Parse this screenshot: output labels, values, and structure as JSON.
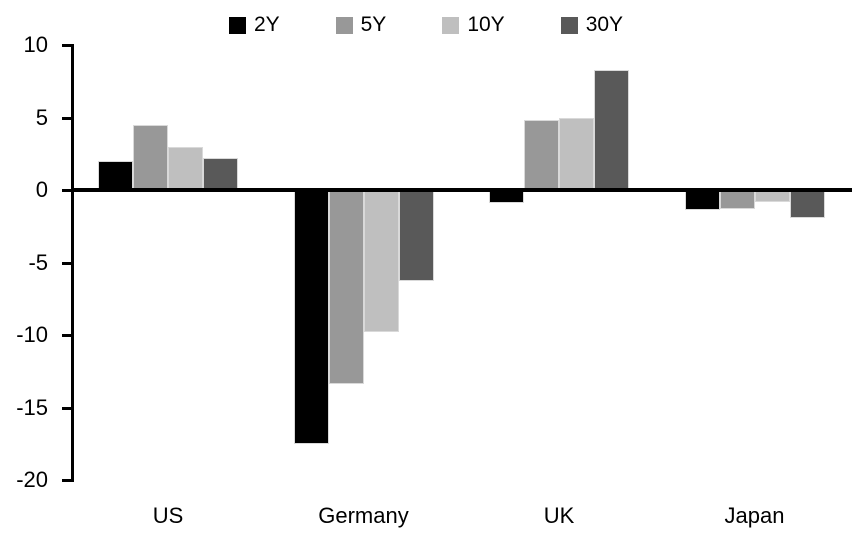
{
  "chart_data": {
    "type": "bar",
    "title": "",
    "categories": [
      "US",
      "Germany",
      "UK",
      "Japan"
    ],
    "series": [
      {
        "name": "2Y",
        "color": "#000000",
        "values": [
          2.0,
          -17.5,
          -0.9,
          -1.4
        ]
      },
      {
        "name": "5Y",
        "color": "#989898",
        "values": [
          4.5,
          -13.4,
          4.8,
          -1.3
        ]
      },
      {
        "name": "10Y",
        "color": "#bfbfbf",
        "values": [
          3.0,
          -9.8,
          5.0,
          -0.8
        ]
      },
      {
        "name": "30Y",
        "color": "#595959",
        "values": [
          2.2,
          -6.3,
          8.3,
          -1.9
        ]
      }
    ],
    "ylim": [
      -20,
      10
    ],
    "yticks": [
      10,
      5,
      0,
      -5,
      -10,
      -15,
      -20
    ],
    "grid": false,
    "legend_position": "top",
    "axis_color": "#000000",
    "background": "#ffffff"
  }
}
